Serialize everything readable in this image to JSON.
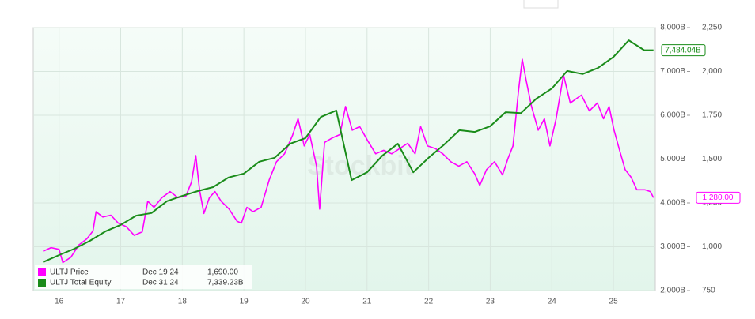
{
  "chart_data": {
    "type": "line",
    "watermark": "Stockbit",
    "xlim": [
      15.58,
      25.68
    ],
    "xticks": [
      16,
      17,
      18,
      19,
      20,
      21,
      22,
      23,
      24,
      25
    ],
    "ylim": [
      2000,
      8000
    ],
    "yticks": [
      {
        "value": 2000,
        "label": "2,000B"
      },
      {
        "value": 3000,
        "label": "3,000B"
      },
      {
        "value": 4000,
        "label": "4,000B"
      },
      {
        "value": 5000,
        "label": "5,000B"
      },
      {
        "value": 6000,
        "label": "6,000B"
      },
      {
        "value": 7000,
        "label": "7,000B"
      },
      {
        "value": 8000,
        "label": "8,000B"
      }
    ],
    "y2lim": [
      750,
      2250
    ],
    "y2ticks": [
      750,
      {
        "value": 1000,
        "label": "1,000"
      },
      {
        "value": 1250,
        "label": "1,250"
      },
      {
        "value": 1500,
        "label": "1,500"
      },
      {
        "value": 1750,
        "label": "1,750"
      },
      {
        "value": 2000,
        "label": "2,000"
      },
      {
        "value": 2250,
        "label": "2,250"
      }
    ],
    "grid": true,
    "series": [
      {
        "name": "ULTJ Price",
        "color": "#ff00ff",
        "axis": "y2",
        "legend_date": "Dec 19 24",
        "legend_value": "1,690.00",
        "last_label": "1,280.00",
        "x": [
          15.74,
          15.87,
          16.0,
          16.06,
          16.19,
          16.32,
          16.45,
          16.55,
          16.6,
          16.71,
          16.84,
          16.96,
          17.09,
          17.22,
          17.35,
          17.44,
          17.54,
          17.67,
          17.8,
          17.93,
          18.06,
          18.15,
          18.22,
          18.28,
          18.35,
          18.44,
          18.53,
          18.63,
          18.76,
          18.89,
          18.96,
          19.05,
          19.15,
          19.28,
          19.41,
          19.53,
          19.66,
          19.79,
          19.88,
          19.98,
          20.07,
          20.18,
          20.23,
          20.31,
          20.43,
          20.56,
          20.65,
          20.76,
          20.88,
          21.01,
          21.14,
          21.27,
          21.4,
          21.53,
          21.66,
          21.78,
          21.87,
          21.98,
          22.11,
          22.23,
          22.36,
          22.49,
          22.62,
          22.75,
          22.83,
          22.94,
          23.07,
          23.2,
          23.29,
          23.37,
          23.46,
          23.52,
          23.58,
          23.67,
          23.78,
          23.88,
          23.97,
          24.07,
          24.19,
          24.3,
          24.4,
          24.48,
          24.61,
          24.74,
          24.84,
          24.93,
          25.01,
          25.1,
          25.19,
          25.29,
          25.38,
          25.51,
          25.6,
          25.65
        ],
        "values": [
          975,
          995,
          985,
          910,
          940,
          1010,
          1045,
          1090,
          1200,
          1170,
          1180,
          1135,
          1115,
          1065,
          1085,
          1260,
          1225,
          1280,
          1315,
          1280,
          1290,
          1370,
          1520,
          1325,
          1190,
          1280,
          1315,
          1260,
          1215,
          1145,
          1135,
          1225,
          1200,
          1225,
          1380,
          1485,
          1530,
          1635,
          1730,
          1575,
          1640,
          1460,
          1215,
          1595,
          1620,
          1640,
          1800,
          1665,
          1685,
          1605,
          1530,
          1550,
          1530,
          1560,
          1590,
          1530,
          1685,
          1575,
          1560,
          1530,
          1485,
          1460,
          1485,
          1415,
          1350,
          1440,
          1485,
          1410,
          1505,
          1575,
          1890,
          2070,
          1955,
          1800,
          1665,
          1730,
          1575,
          1730,
          1980,
          1820,
          1845,
          1865,
          1775,
          1820,
          1730,
          1800,
          1665,
          1550,
          1440,
          1395,
          1325,
          1325,
          1315,
          1280
        ]
      },
      {
        "name": "ULTJ Total Equity",
        "color": "#1a8c1a",
        "legend_date": "Dec 31 24",
        "legend_value": "7,339.23B",
        "last_label": "7,484.04B",
        "x": [
          15.74,
          16.0,
          16.25,
          16.5,
          16.75,
          17.0,
          17.25,
          17.5,
          17.75,
          18.0,
          18.25,
          18.5,
          18.75,
          19.0,
          19.25,
          19.5,
          19.75,
          20.0,
          20.25,
          20.5,
          20.75,
          21.0,
          21.25,
          21.5,
          21.75,
          22.0,
          22.25,
          22.5,
          22.75,
          23.0,
          23.25,
          23.5,
          23.75,
          24.0,
          24.25,
          24.5,
          24.75,
          25.0,
          25.25,
          25.5,
          25.65
        ],
        "values": [
          2650,
          2810,
          2955,
          3135,
          3350,
          3500,
          3710,
          3770,
          4040,
          4160,
          4270,
          4360,
          4580,
          4670,
          4940,
          5030,
          5350,
          5480,
          5960,
          6110,
          4520,
          4700,
          5080,
          5350,
          4700,
          5030,
          5330,
          5660,
          5620,
          5750,
          6070,
          6050,
          6380,
          6610,
          7010,
          6940,
          7080,
          7330,
          7710,
          7484,
          7484
        ]
      }
    ]
  }
}
